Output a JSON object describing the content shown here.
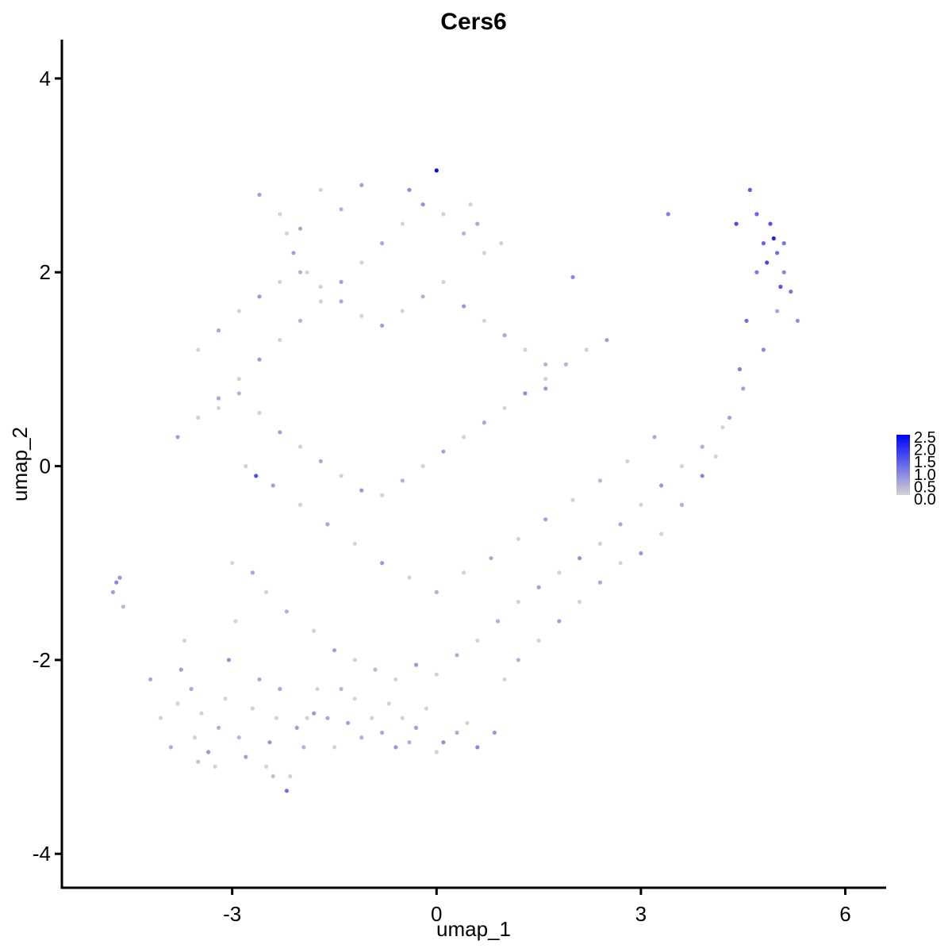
{
  "chart_data": {
    "type": "scatter",
    "title": "Cers6",
    "xlabel": "umap_1",
    "ylabel": "umap_2",
    "xlim": [
      -5.5,
      6.6
    ],
    "ylim": [
      -4.35,
      4.4
    ],
    "x_ticks": [
      -3,
      0,
      3,
      6
    ],
    "y_ticks": [
      -4,
      -2,
      0,
      2,
      4
    ],
    "x_tick_labels": [
      "-3",
      "0",
      "3",
      "6"
    ],
    "y_tick_labels": [
      "-4",
      "-2",
      "0",
      "2",
      "4"
    ],
    "grid": false,
    "color_scale": {
      "low": "#d3d3d3",
      "high": "#0000ff",
      "min": 0.0,
      "max": 2.5,
      "labels": [
        "2.5",
        "2.0",
        "1.5",
        "1.0",
        "0.5",
        "0.0"
      ],
      "placement": "right"
    },
    "x": [
      -4.75,
      -4.7,
      -4.65,
      -4.6,
      -4.2,
      -4.05,
      -3.9,
      -3.8,
      -3.75,
      -3.7,
      -3.6,
      -3.55,
      -3.5,
      -3.45,
      -3.35,
      -3.25,
      -3.2,
      -3.1,
      -3.05,
      -2.95,
      -2.9,
      -2.8,
      -2.7,
      -2.6,
      -2.5,
      -2.45,
      -2.4,
      -2.35,
      -2.3,
      -2.2,
      -2.15,
      -2.05,
      -1.95,
      -1.9,
      -1.8,
      -1.75,
      -1.6,
      -1.5,
      -1.4,
      -1.3,
      -1.2,
      -1.1,
      -0.95,
      -0.8,
      -0.7,
      -0.6,
      -0.5,
      -0.4,
      -0.3,
      -0.15,
      0.0,
      0.1,
      0.3,
      0.45,
      0.6,
      0.85,
      1.0,
      1.2,
      1.5,
      1.8,
      2.1,
      2.4,
      2.7,
      3.0,
      3.3,
      3.6,
      3.9,
      4.1,
      4.3,
      4.45,
      4.55,
      4.7,
      4.8,
      4.9,
      5.0,
      5.1,
      5.2,
      5.3,
      -3.0,
      -2.7,
      -2.5,
      -2.2,
      -1.8,
      -1.5,
      -1.2,
      -0.9,
      -0.6,
      -0.3,
      0.0,
      0.3,
      0.6,
      0.9,
      1.2,
      1.5,
      1.8,
      2.1,
      2.4,
      2.7,
      3.0,
      3.3,
      3.6,
      3.9,
      4.2,
      4.5,
      4.8,
      5.0,
      -2.8,
      -2.4,
      -2.0,
      -1.6,
      -1.2,
      -0.8,
      -0.4,
      0.0,
      0.4,
      0.8,
      1.2,
      1.6,
      2.0,
      2.4,
      2.8,
      3.2,
      -3.2,
      -2.9,
      -2.6,
      -2.3,
      -2.0,
      -1.7,
      -1.4,
      -1.1,
      -0.8,
      -0.5,
      -0.2,
      0.1,
      0.4,
      0.7,
      1.0,
      1.3,
      1.6,
      1.9,
      2.2,
      2.5,
      -3.5,
      -3.2,
      -2.9,
      -2.6,
      -2.3,
      -2.0,
      -1.7,
      -1.4,
      -1.1,
      -0.8,
      -0.5,
      -0.2,
      0.1,
      0.4,
      0.7,
      1.0,
      1.3,
      1.6,
      -3.8,
      -3.5,
      -3.2,
      -2.9,
      -2.6,
      -2.3,
      -2.0,
      -1.7,
      -1.4,
      -1.1,
      -0.8,
      -0.5,
      -0.2,
      0.1,
      0.4,
      0.7,
      -2.6,
      -2.3,
      -2.0,
      -1.7,
      -1.4,
      -2.2,
      -2.1,
      -1.9,
      0.0,
      0.5,
      0.6,
      0.95,
      -1.1,
      -0.4,
      4.95,
      5.05,
      4.85,
      4.6,
      4.7,
      5.1,
      4.4,
      2.0,
      3.4,
      1.6,
      -2.65
    ],
    "y": [
      -1.3,
      -1.2,
      -1.15,
      -1.45,
      -2.2,
      -2.6,
      -2.9,
      -2.45,
      -2.1,
      -1.8,
      -2.3,
      -2.8,
      -3.05,
      -2.55,
      -2.95,
      -3.1,
      -2.7,
      -2.4,
      -2.0,
      -1.6,
      -2.8,
      -3.0,
      -2.5,
      -2.2,
      -3.1,
      -2.85,
      -3.2,
      -2.6,
      -2.3,
      -3.35,
      -3.2,
      -2.7,
      -2.9,
      -2.6,
      -2.55,
      -2.3,
      -2.6,
      -2.9,
      -2.3,
      -2.65,
      -2.4,
      -2.8,
      -2.6,
      -2.75,
      -2.45,
      -2.9,
      -2.6,
      -2.85,
      -2.7,
      -2.5,
      -2.95,
      -2.85,
      -2.75,
      -2.65,
      -2.9,
      -2.75,
      -2.2,
      -2.0,
      -1.8,
      -1.6,
      -1.4,
      -1.2,
      -1.0,
      -0.9,
      -0.7,
      -0.4,
      -0.1,
      0.1,
      0.5,
      1.0,
      1.5,
      2.0,
      2.3,
      2.5,
      2.2,
      2.0,
      1.8,
      1.5,
      -1.0,
      -1.1,
      -1.3,
      -1.5,
      -1.7,
      -1.9,
      -2.0,
      -2.1,
      -2.2,
      -2.05,
      -2.15,
      -1.95,
      -1.8,
      -1.6,
      -1.4,
      -1.25,
      -1.1,
      -0.95,
      -0.8,
      -0.6,
      -0.4,
      -0.2,
      0.0,
      0.2,
      0.4,
      0.8,
      1.2,
      1.6,
      0.0,
      -0.2,
      -0.4,
      -0.6,
      -0.8,
      -1.0,
      -1.15,
      -1.3,
      -1.1,
      -0.95,
      -0.75,
      -0.55,
      -0.35,
      -0.15,
      0.05,
      0.3,
      0.6,
      0.75,
      0.55,
      0.35,
      0.2,
      0.05,
      -0.1,
      -0.25,
      -0.3,
      -0.15,
      0.0,
      0.15,
      0.3,
      0.45,
      0.6,
      0.75,
      0.9,
      1.05,
      1.2,
      1.3,
      1.2,
      1.4,
      1.6,
      1.75,
      1.9,
      2.0,
      1.85,
      1.7,
      1.55,
      1.45,
      1.6,
      1.75,
      1.9,
      1.65,
      1.5,
      1.35,
      1.2,
      1.05,
      0.3,
      0.5,
      0.7,
      0.9,
      1.1,
      1.3,
      1.5,
      1.7,
      1.9,
      2.1,
      2.3,
      2.5,
      2.7,
      2.6,
      2.4,
      2.2,
      2.8,
      2.6,
      2.45,
      2.85,
      2.65,
      2.4,
      2.2,
      2.0,
      3.05,
      2.7,
      2.5,
      2.3,
      2.9,
      2.85,
      2.35,
      1.85,
      2.1,
      2.85,
      2.6,
      2.3,
      2.5,
      1.95,
      2.6,
      0.8,
      -0.1
    ],
    "values": [
      0.6,
      0.9,
      0.7,
      0.3,
      0.5,
      0.0,
      0.4,
      0.0,
      0.6,
      0.0,
      0.5,
      0.0,
      0.2,
      0.0,
      0.7,
      0.0,
      0.4,
      0.0,
      0.8,
      0.0,
      0.3,
      0.6,
      0.0,
      0.5,
      0.0,
      0.7,
      0.2,
      0.0,
      0.5,
      1.2,
      0.0,
      0.6,
      0.4,
      0.0,
      0.7,
      0.0,
      0.5,
      0.0,
      0.3,
      0.6,
      0.0,
      0.4,
      0.0,
      0.5,
      0.0,
      0.7,
      0.0,
      0.4,
      0.6,
      0.0,
      0.0,
      0.8,
      0.5,
      0.0,
      0.9,
      0.7,
      0.0,
      0.4,
      0.0,
      0.6,
      0.0,
      0.5,
      0.0,
      0.7,
      0.0,
      0.4,
      0.9,
      0.0,
      0.6,
      1.0,
      1.2,
      1.1,
      1.3,
      1.5,
      1.2,
      0.9,
      1.1,
      0.8,
      0.0,
      0.5,
      0.0,
      0.4,
      0.0,
      0.6,
      0.0,
      0.3,
      0.0,
      0.7,
      0.0,
      0.5,
      0.0,
      0.4,
      0.0,
      0.6,
      0.0,
      0.8,
      0.0,
      0.5,
      0.0,
      0.7,
      0.0,
      0.4,
      0.0,
      0.6,
      0.9,
      0.5,
      0.0,
      0.6,
      0.0,
      0.5,
      0.0,
      0.7,
      0.0,
      0.4,
      0.0,
      0.5,
      0.0,
      0.6,
      0.0,
      0.3,
      0.0,
      0.5,
      0.0,
      0.4,
      0.0,
      0.6,
      0.0,
      0.5,
      0.0,
      0.7,
      0.0,
      0.4,
      0.0,
      0.6,
      0.0,
      0.5,
      0.0,
      0.8,
      0.0,
      0.4,
      0.0,
      0.6,
      0.0,
      0.5,
      0.0,
      0.7,
      0.0,
      0.4,
      0.0,
      0.5,
      0.0,
      0.6,
      0.0,
      0.4,
      0.0,
      0.7,
      0.0,
      0.5,
      0.0,
      0.4,
      0.6,
      0.0,
      0.5,
      0.0,
      0.7,
      0.0,
      0.4,
      0.0,
      0.6,
      0.0,
      0.5,
      0.0,
      0.8,
      0.0,
      0.4,
      0.0,
      0.6,
      0.0,
      0.5,
      0.0,
      0.4,
      0.0,
      0.6,
      0.0,
      2.4,
      0.0,
      0.5,
      0.0,
      0.6,
      0.8,
      2.1,
      1.5,
      1.7,
      1.4,
      1.3,
      1.1,
      1.6,
      0.9,
      1.0,
      0.7,
      1.6
    ]
  }
}
